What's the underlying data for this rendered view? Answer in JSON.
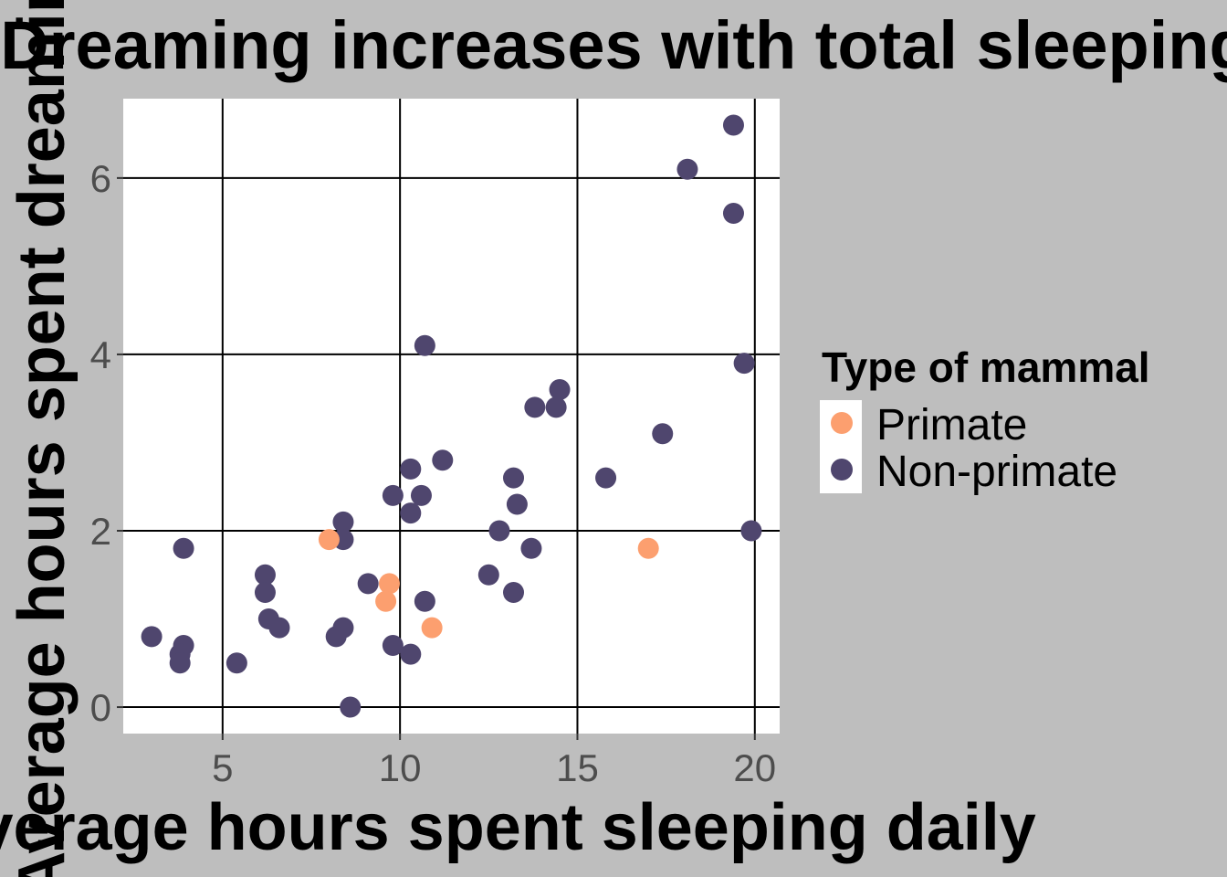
{
  "chart_data": {
    "type": "scatter",
    "title": "Dreaming increases with total sleeping",
    "xlabel": "Average hours spent sleeping daily",
    "ylabel": "Average hours spent dreaming",
    "xlim": [
      2.2,
      20.7
    ],
    "ylim": [
      -0.3,
      6.9
    ],
    "x_ticks": [
      5,
      10,
      15,
      20
    ],
    "y_ticks": [
      0,
      2,
      4,
      6
    ],
    "grid": true,
    "legend": {
      "title": "Type of mammal",
      "position": "right"
    },
    "colors": {
      "Primate": "#fc9f6f",
      "Non-primate": "#4f466e",
      "panel": "#ffffff",
      "background": "#bebebe",
      "grid": "#000000"
    },
    "series": [
      {
        "name": "Non-primate",
        "x": [
          19.4,
          18.1,
          19.4,
          10.7,
          19.7,
          14.5,
          13.8,
          14.4,
          17.4,
          11.2,
          10.3,
          13.2,
          15.8,
          9.8,
          10.6,
          13.3,
          10.3,
          8.4,
          12.8,
          19.9,
          8.4,
          3.9,
          13.7,
          12.5,
          6.2,
          9.1,
          13.2,
          6.2,
          10.7,
          3.0,
          6.3,
          6.6,
          8.4,
          8.2,
          3.9,
          9.8,
          3.8,
          10.3,
          3.8,
          5.4,
          8.6
        ],
        "y": [
          6.6,
          6.1,
          5.6,
          4.1,
          3.9,
          3.6,
          3.4,
          3.4,
          3.1,
          2.8,
          2.7,
          2.6,
          2.6,
          2.4,
          2.4,
          2.3,
          2.2,
          2.1,
          2.0,
          2.0,
          1.9,
          1.8,
          1.8,
          1.5,
          1.5,
          1.4,
          1.3,
          1.3,
          1.2,
          0.8,
          1.0,
          0.9,
          0.9,
          0.8,
          0.7,
          0.7,
          0.6,
          0.6,
          0.5,
          0.5,
          0.0
        ]
      },
      {
        "name": "Primate",
        "x": [
          8.0,
          17.0,
          9.7,
          9.6,
          10.9
        ],
        "y": [
          1.9,
          1.8,
          1.4,
          1.2,
          0.9
        ]
      }
    ]
  }
}
